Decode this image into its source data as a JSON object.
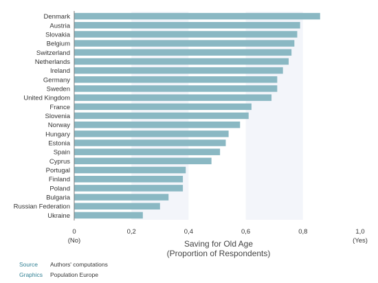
{
  "chart_data": {
    "type": "bar",
    "orientation": "horizontal",
    "categories": [
      "Denmark",
      "Austria",
      "Slovakia",
      "Belgium",
      "Switzerland",
      "Netherlands",
      "Ireland",
      "Germany",
      "Sweden",
      "United Kingdom",
      "France",
      "Slovenia",
      "Norway",
      "Hungary",
      "Estonia",
      "Spain",
      "Cyprus",
      "Portugal",
      "Finland",
      "Poland",
      "Bulgaria",
      "Russian Federation",
      "Ukraine"
    ],
    "values": [
      0.86,
      0.79,
      0.78,
      0.77,
      0.76,
      0.75,
      0.73,
      0.71,
      0.71,
      0.69,
      0.62,
      0.61,
      0.58,
      0.54,
      0.53,
      0.51,
      0.48,
      0.39,
      0.38,
      0.38,
      0.33,
      0.3,
      0.24
    ],
    "xlim": [
      0,
      1
    ],
    "xticks": [
      "0",
      "0,2",
      "0,4",
      "0,6",
      "0,8",
      "1,0"
    ],
    "tick_values": [
      0,
      0.2,
      0.4,
      0.6,
      0.8,
      1.0
    ],
    "x_endpoint_labels": {
      "min": "(No)",
      "max": "(Yes)"
    },
    "xlabel_line1": "Saving for Old Age",
    "xlabel_line2": "(Proportion of Respondents)",
    "bar_color": "#8ab8c3",
    "band_color": "#f3f5fa"
  },
  "footer": {
    "source_key": "Source",
    "source_value": "Authors' computations",
    "graphics_key": "Graphics",
    "graphics_value": "Population Europe",
    "key_color": "#2f7f93"
  }
}
